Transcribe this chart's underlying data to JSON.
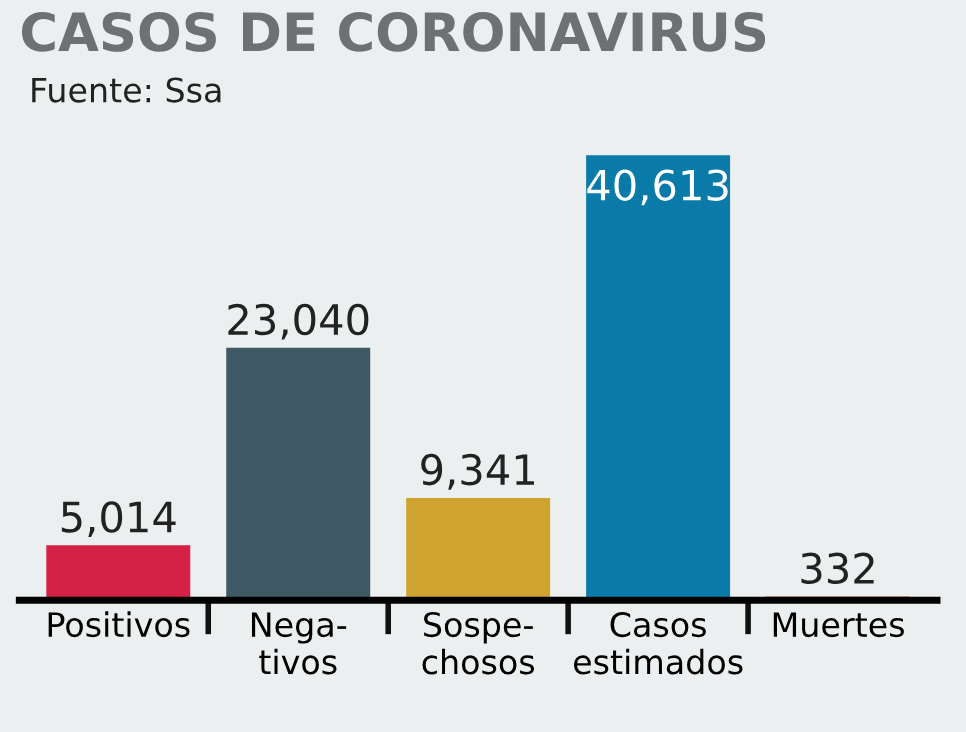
{
  "chart_data": {
    "type": "bar",
    "title": "CASOS DE CORONAVIRUS",
    "subtitle": "Fuente: Ssa",
    "categories": [
      "Positivos",
      "Nega-\ntivos",
      "Sospe-\nchosos",
      "Casos\nestimados",
      "Muertes"
    ],
    "values": [
      5014,
      23040,
      9341,
      40613,
      332
    ],
    "colors": [
      "#d42146",
      "#3f5964",
      "#cfa42e",
      "#0a7aa8",
      "#c1622e"
    ],
    "data_labels": true,
    "value_labels": [
      "5,014",
      "23,040",
      "9,341",
      "40,613",
      "332"
    ]
  }
}
